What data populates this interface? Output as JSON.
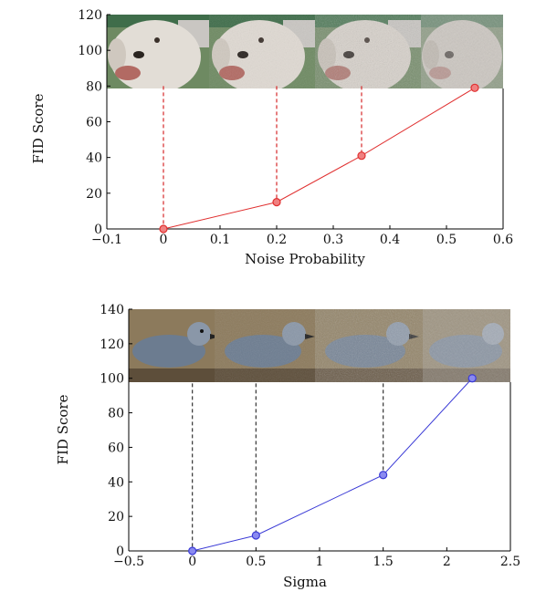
{
  "chart_data": [
    {
      "type": "line",
      "xlabel": "Noise Probability",
      "ylabel": "FID Score",
      "xlim": [
        -0.1,
        0.6
      ],
      "ylim": [
        0,
        120
      ],
      "xticks": [
        "−0.1",
        "0",
        "0.1",
        "0.2",
        "0.3",
        "0.4",
        "0.5",
        "0.6"
      ],
      "yticks": [
        "0",
        "20",
        "40",
        "60",
        "80",
        "100",
        "120"
      ],
      "series": [
        {
          "x": [
            0,
            0.2,
            0.35,
            0.55
          ],
          "y": [
            0,
            15,
            41,
            79
          ],
          "color": "#e03030",
          "marker_fill": "#f08080"
        }
      ],
      "image_strip": {
        "subject": "dog photo with increasing noise",
        "ymin": 80,
        "ymax": 120,
        "panels": 4
      },
      "dashed_guides": {
        "x": [
          0,
          0.2,
          0.35
        ],
        "color": "#d62728"
      },
      "grid": false
    },
    {
      "type": "line",
      "xlabel": "Sigma",
      "ylabel": "FID Score",
      "xlim": [
        -0.5,
        2.5
      ],
      "ylim": [
        0,
        140
      ],
      "xticks": [
        "−0.5",
        "0",
        "0.5",
        "1",
        "1.5",
        "2",
        "2.5"
      ],
      "yticks": [
        "0",
        "20",
        "40",
        "60",
        "80",
        "100",
        "120",
        "140"
      ],
      "series": [
        {
          "x": [
            0,
            0.5,
            1.5,
            2.2
          ],
          "y": [
            0,
            9,
            44,
            100
          ],
          "color": "#3a3ad6",
          "marker_fill": "#8a8af0"
        }
      ],
      "image_strip": {
        "subject": "bird photo with increasing noise",
        "ymin": 97,
        "ymax": 140,
        "panels": 4
      },
      "dashed_guides": {
        "x": [
          0,
          0.5,
          1.5
        ],
        "color": "#333333"
      },
      "grid": false
    }
  ]
}
